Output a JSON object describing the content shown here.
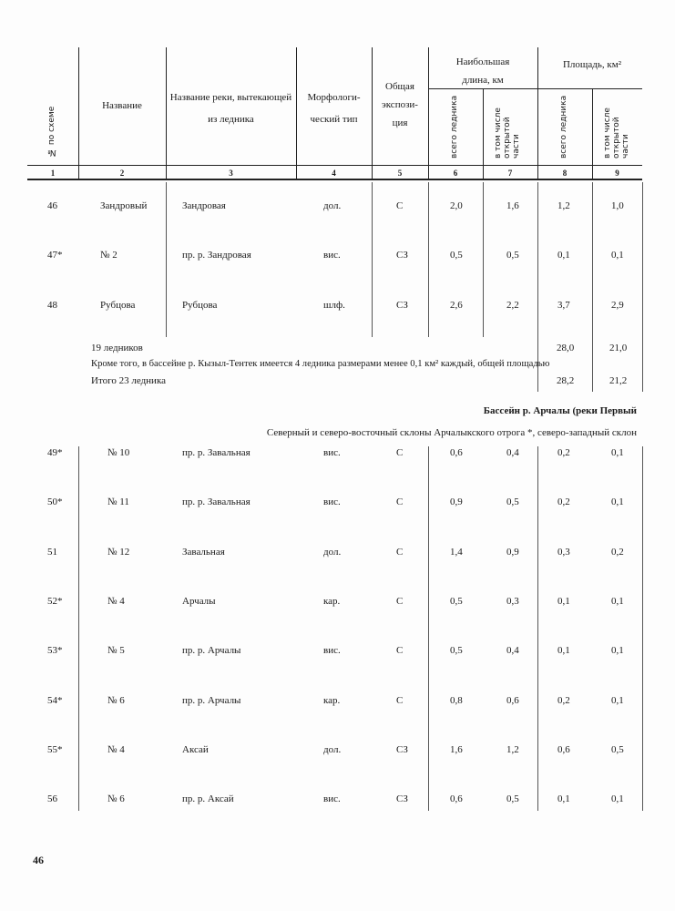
{
  "header": {
    "col1": "№ по схеме",
    "col2": "Название",
    "col3": "Название реки, вытекающей из ледника",
    "col4": "Морфологи-ческий тип",
    "col5": "Общая экспози-ция",
    "length_group": "Наибольшая длина, км",
    "area_group": "Площадь, км²",
    "total": "всего ледника",
    "open_part": "в том числе открытой части",
    "numbers": [
      "1",
      "2",
      "3",
      "4",
      "5",
      "6",
      "7",
      "8",
      "9"
    ]
  },
  "rows_a": [
    [
      "46",
      "Зандровый",
      "Зандровая",
      "дол.",
      "С",
      "2,0",
      "1,6",
      "1,2",
      "1,0"
    ],
    [
      "47*",
      "№ 2",
      "пр. р. Зандровая",
      "вис.",
      "СЗ",
      "0,5",
      "0,5",
      "0,1",
      "0,1"
    ],
    [
      "48",
      "Рубцова",
      "Рубцова",
      "шлф.",
      "СЗ",
      "2,6",
      "2,2",
      "3,7",
      "2,9"
    ]
  ],
  "summary": {
    "count_label": "19 ледников",
    "count_area_total": "28,0",
    "count_area_open": "21,0",
    "note": "Кроме того, в бассейне р. Кызыл-Тентек имеется 4 ледника размерами менее 0,1 км² каждый, общей площадью",
    "total_label": "Итого 23 ледника",
    "total_area_total": "28,2",
    "total_area_open": "21,2"
  },
  "section_title": "Бассейн р. Арчалы (реки Первый",
  "section_subtitle": "Северный и северо-восточный склоны Арчалыкского отрога *, северо-западный склон",
  "rows_b": [
    [
      "49*",
      "№ 10",
      "пр. р. Завальная",
      "вис.",
      "С",
      "0,6",
      "0,4",
      "0,2",
      "0,1"
    ],
    [
      "50*",
      "№ 11",
      "пр. р. Завальная",
      "вис.",
      "С",
      "0,9",
      "0,5",
      "0,2",
      "0,1"
    ],
    [
      "51",
      "№ 12",
      "Завальная",
      "дол.",
      "С",
      "1,4",
      "0,9",
      "0,3",
      "0,2"
    ],
    [
      "52*",
      "№ 4",
      "Арчалы",
      "кар.",
      "С",
      "0,5",
      "0,3",
      "0,1",
      "0,1"
    ],
    [
      "53*",
      "№ 5",
      "пр. р. Арчалы",
      "вис.",
      "С",
      "0,5",
      "0,4",
      "0,1",
      "0,1"
    ],
    [
      "54*",
      "№ 6",
      "пр. р. Арчалы",
      "кар.",
      "С",
      "0,8",
      "0,6",
      "0,2",
      "0,1"
    ],
    [
      "55*",
      "№ 4",
      "Аксай",
      "дол.",
      "СЗ",
      "1,6",
      "1,2",
      "0,6",
      "0,5"
    ],
    [
      "56",
      "№ 6",
      "пр. р. Аксай",
      "вис.",
      "СЗ",
      "0,6",
      "0,5",
      "0,1",
      "0,1"
    ]
  ],
  "page_number": "46"
}
